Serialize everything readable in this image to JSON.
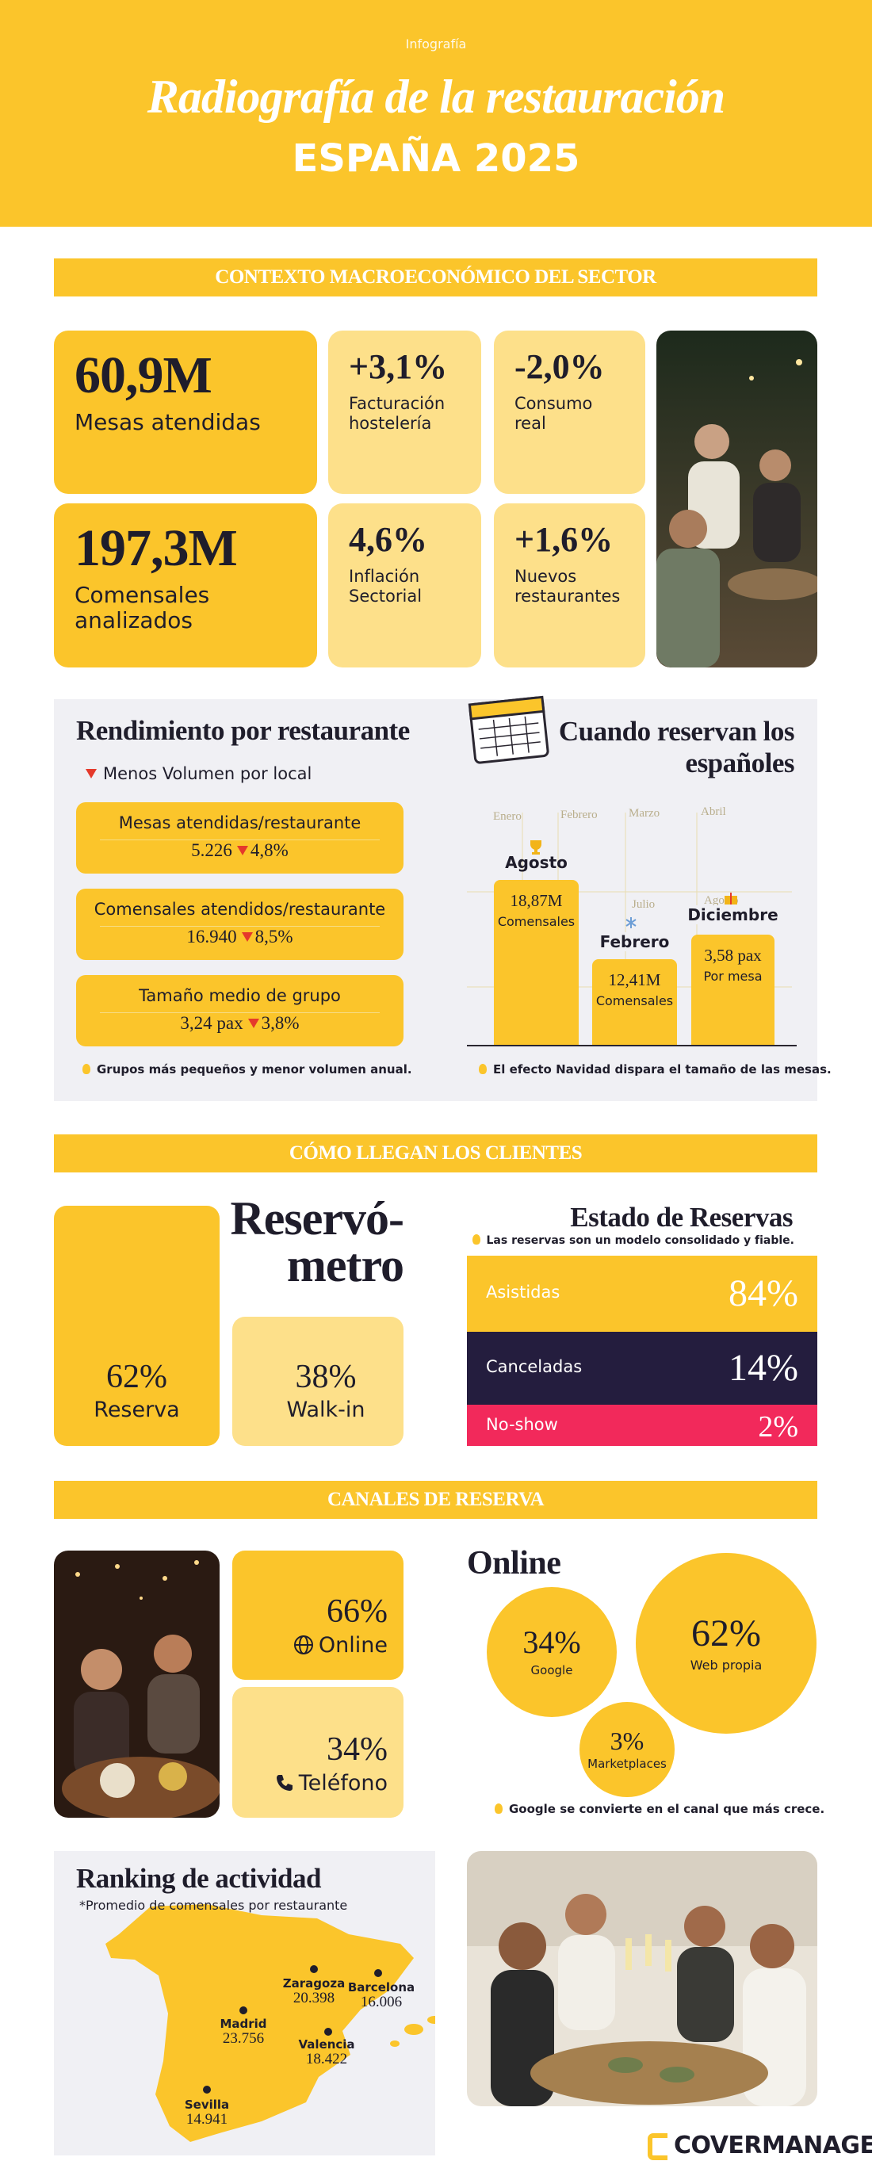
{
  "header": {
    "kicker": "Infografía",
    "title": "Radiografía de la restauración",
    "subtitle": "ESPAÑA 2025"
  },
  "macro": {
    "heading": "CONTEXTO MACROECONÓMICO DEL SECTOR",
    "cards": [
      {
        "value": "60,9M",
        "label": "Mesas atendidas"
      },
      {
        "value": "+3,1%",
        "label": "Facturación hostelería"
      },
      {
        "value": "-2,0%",
        "label": "Consumo real"
      },
      {
        "value": "197,3M",
        "label": "Comensales analizados"
      },
      {
        "value": "4,6%",
        "label": "Inflación Sectorial"
      },
      {
        "value": "+1,6%",
        "label": "Nuevos restaurantes"
      }
    ]
  },
  "performance": {
    "title": "Rendimiento por restaurante",
    "note": "Menos Volumen por local",
    "metrics": [
      {
        "label": "Mesas atendidas/restaurante",
        "value": "5.226",
        "change": "4,8%"
      },
      {
        "label": "Comensales atendidos/restaurante",
        "value": "16.940",
        "change": "8,5%"
      },
      {
        "label": "Tamaño medio de grupo",
        "value": "3,24 pax",
        "change": "3,8%"
      }
    ],
    "footnote": "Grupos más pequeños y menor volumen anual."
  },
  "seasonality": {
    "title": "Cuando reservan los españoles",
    "months": [
      "Enero",
      "Febrero",
      "Marzo",
      "Abril",
      "Julio",
      "Agosto"
    ],
    "highlights": [
      {
        "month": "Agosto",
        "value": "18,87M",
        "unit": "Comensales"
      },
      {
        "month": "Febrero",
        "value": "12,41M",
        "unit": "Comensales"
      },
      {
        "month": "Diciembre",
        "value": "3,58 pax",
        "unit": "Por mesa"
      }
    ],
    "footnote": "El efecto Navidad dispara el tamaño de las mesas."
  },
  "arrival": {
    "heading": "CÓMO LLEGAN LOS CLIENTES",
    "meter_title": [
      "Reservó-",
      "metro"
    ],
    "reserva": {
      "value": "62%",
      "label": "Reserva"
    },
    "walkin": {
      "value": "38%",
      "label": "Walk-in"
    }
  },
  "status": {
    "title": "Estado de Reservas",
    "note": "Las reservas son un modelo consolidado y fiable.",
    "rows": [
      {
        "label": "Asistidas",
        "value": "84%"
      },
      {
        "label": "Canceladas",
        "value": "14%"
      },
      {
        "label": "No-show",
        "value": "2%"
      }
    ]
  },
  "channels": {
    "heading": "CANALES DE RESERVA",
    "online": {
      "value": "66%",
      "label": "Online"
    },
    "phone": {
      "value": "34%",
      "label": "Teléfono"
    },
    "online_title": "Online",
    "bubbles": [
      {
        "value": "34%",
        "label": "Google"
      },
      {
        "value": "62%",
        "label": "Web propia"
      },
      {
        "value": "3%",
        "label": "Marketplaces"
      }
    ],
    "footnote": "Google se convierte en el canal que más crece."
  },
  "ranking": {
    "title": "Ranking de actividad",
    "note": "*Promedio de comensales por restaurante",
    "cities": [
      {
        "name": "Zaragoza",
        "value": "20.398"
      },
      {
        "name": "Barcelona",
        "value": "16.006"
      },
      {
        "name": "Madrid",
        "value": "23.756"
      },
      {
        "name": "Valencia",
        "value": "18.422"
      },
      {
        "name": "Sevilla",
        "value": "14.941"
      }
    ]
  },
  "brand": "COVERMANAGER"
}
